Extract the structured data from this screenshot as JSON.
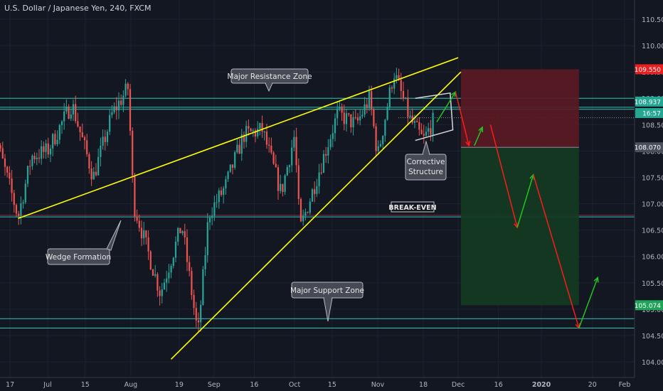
{
  "header": {
    "title": "U.S. Dollar / Japanese Yen, 240, FXCM"
  },
  "colors": {
    "background": "#131722",
    "grid": "#1e2230",
    "axis_text": "#b2b5be",
    "candle_up": "#26a69a",
    "candle_down": "#ef5350",
    "trendline": "#ffff00",
    "zone_line": "#2ec4b6",
    "arrow_up": "#21c521",
    "arrow_down": "#ff1a1a",
    "stop_zone": "#5a1a24",
    "target_zone": "#133b22",
    "callout_bg": "#454a55",
    "callout_border": "#b5b9c2",
    "price_tag_red": "#e91e1e",
    "price_tag_teal": "#24a693",
    "price_tag_gray": "#4a4f5b"
  },
  "chart_data": {
    "type": "candlestick",
    "title": "U.S. Dollar / Japanese Yen, 240, FXCM",
    "ylim": [
      103.6,
      111.2
    ],
    "y_ticks": [
      "110.500",
      "110.000",
      "109.500",
      "109.000",
      "108.500",
      "108.000",
      "107.500",
      "107.000",
      "106.500",
      "106.000",
      "105.500",
      "105.000",
      "104.500",
      "104.000"
    ],
    "x_ticks": [
      "17",
      "Jul",
      "15",
      "Aug",
      "19",
      "Sep",
      "16",
      "Oct",
      "15",
      "Nov",
      "18",
      "Dec",
      "16",
      "2020",
      "20",
      "Feb"
    ],
    "price_labels": [
      {
        "text": "109.550",
        "value": 109.55,
        "style": "red"
      },
      {
        "text": "108.937",
        "value": 108.937,
        "style": "teal"
      },
      {
        "text": "16:57",
        "value": 108.72,
        "style": "teal"
      },
      {
        "text": "108.070",
        "value": 108.07,
        "style": "gray"
      },
      {
        "text": "105.074",
        "value": 105.074,
        "style": "green"
      }
    ],
    "horizontal_levels": [
      109.0,
      108.83,
      108.79,
      106.75,
      104.82,
      104.64
    ],
    "breakeven_level": 106.78,
    "trendlines": [
      {
        "from": [
          "2019-06-20",
          106.72
        ],
        "to": [
          "2019-12-01",
          109.77
        ]
      },
      {
        "from": [
          "2019-08-16",
          104.05
        ],
        "to": [
          "2019-12-02",
          109.5
        ]
      }
    ],
    "zones": [
      {
        "type": "stop",
        "from": "2019-12-02",
        "to": "2020-01-15",
        "top": 109.55,
        "bottom": 108.07
      },
      {
        "type": "target",
        "from": "2019-12-02",
        "to": "2020-01-15",
        "top": 108.07,
        "bottom": 105.074
      }
    ],
    "annotations": [
      "Major Resistance Zone",
      "Corrective\nStructure",
      "BREAK-EVEN",
      "Wedge Formation",
      "Major Support Zone"
    ]
  },
  "callouts": {
    "resistance": "Major Resistance Zone",
    "corrective_1": "Corrective",
    "corrective_2": "Structure",
    "breakeven": "BREAK-EVEN",
    "wedge": "Wedge Formation",
    "support": "Major Support Zone"
  }
}
